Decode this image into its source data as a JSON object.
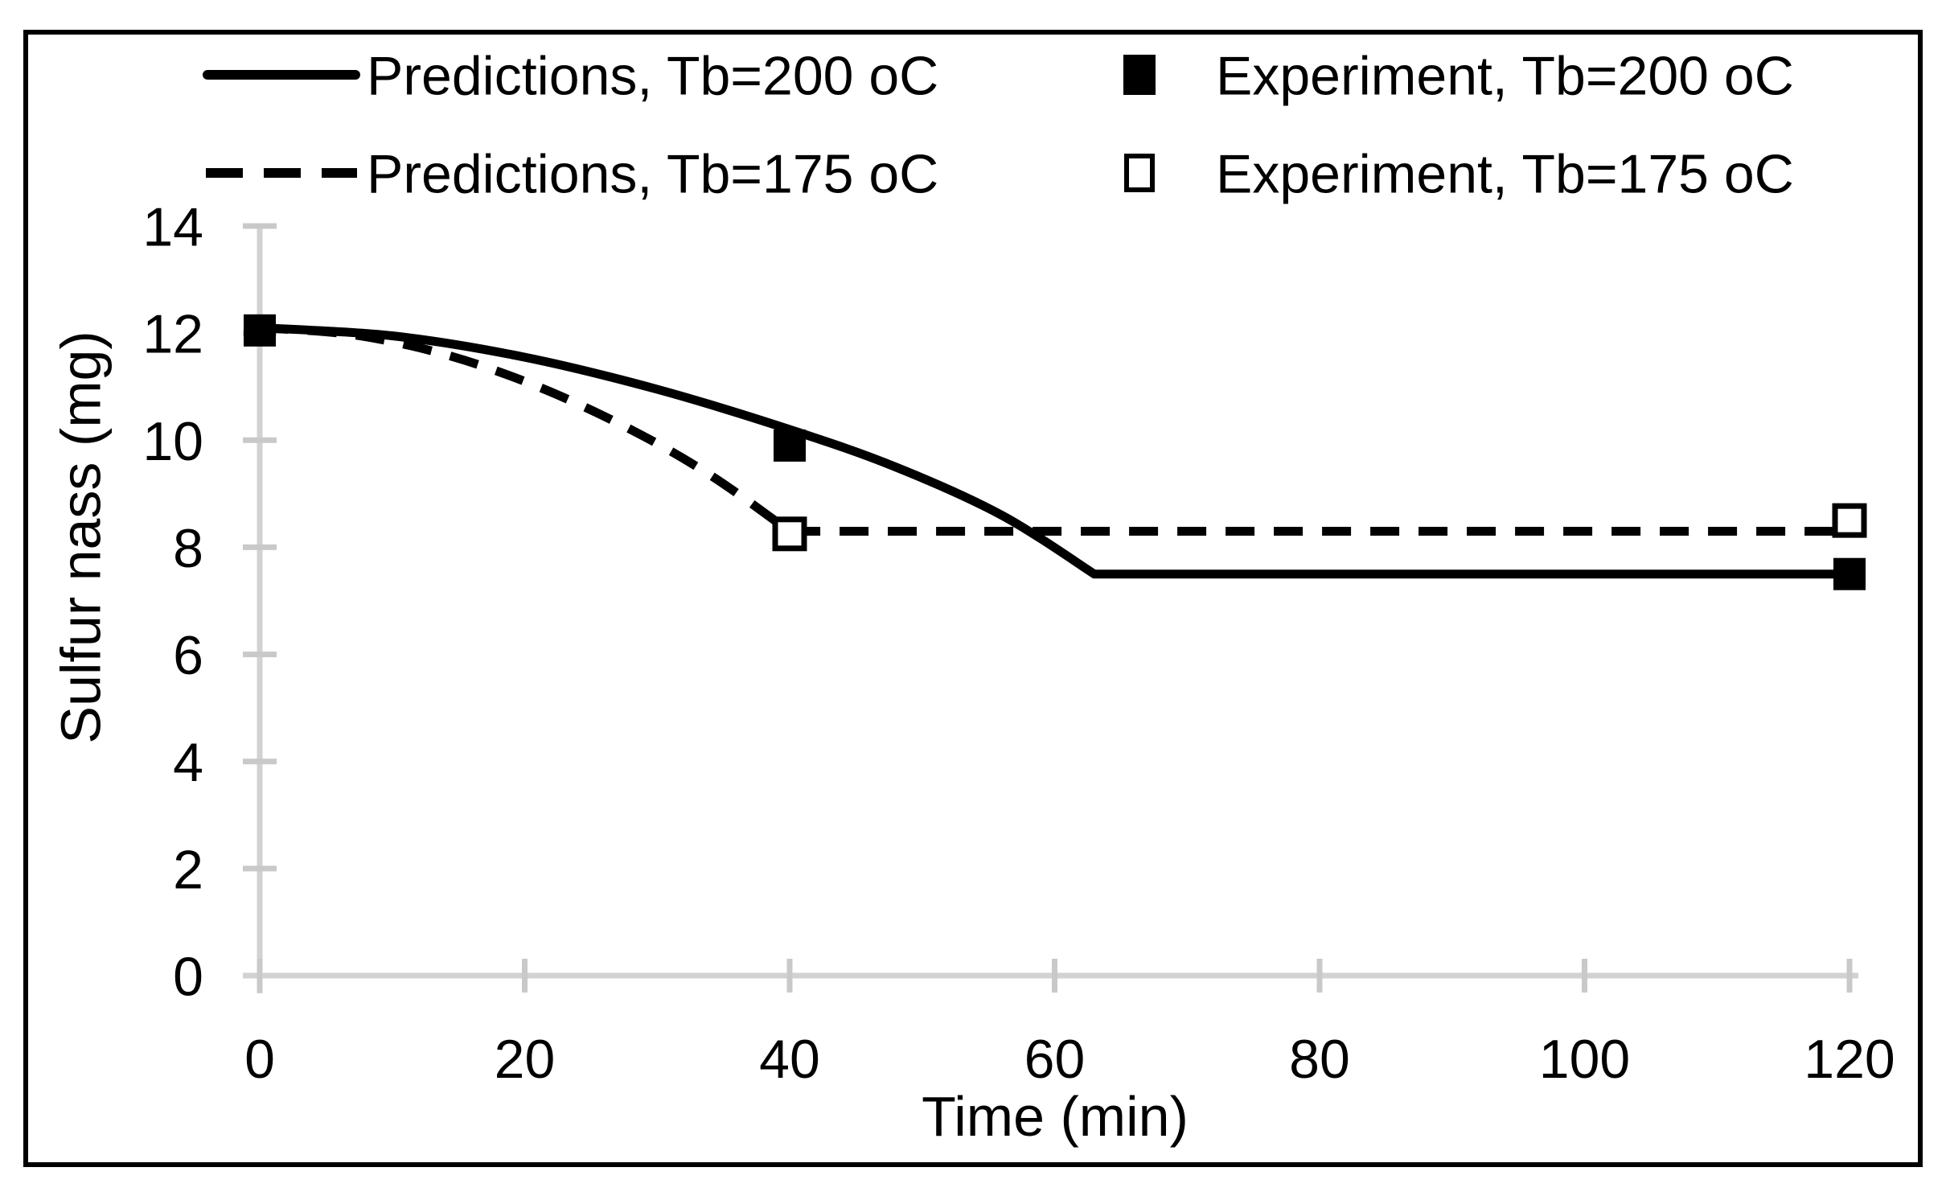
{
  "figure": {
    "background": "#ffffff",
    "frame_color": "#000000",
    "text_color": "#000000",
    "axis_color": "#d2d2d2",
    "tick_color": "#c9c9c9"
  },
  "chart_data": {
    "type": "line",
    "title": "",
    "xlabel": "Time (min)",
    "ylabel": "Sulfur nass (mg)",
    "xlim": [
      0,
      120
    ],
    "ylim": [
      0,
      14
    ],
    "x_ticks": [
      0,
      20,
      40,
      60,
      80,
      100,
      120
    ],
    "y_ticks": [
      0,
      2,
      4,
      6,
      8,
      10,
      12,
      14
    ],
    "grid": false,
    "legend_position": "top",
    "series": [
      {
        "name": "Predictions, Tb=200 oC",
        "kind": "line",
        "line_style": "solid",
        "color": "#000000",
        "points": [
          [
            0,
            12.1
          ],
          [
            10,
            11.95
          ],
          [
            20,
            11.55
          ],
          [
            30,
            10.95
          ],
          [
            40,
            10.2
          ],
          [
            48,
            9.5
          ],
          [
            56,
            8.6
          ],
          [
            63,
            7.5
          ],
          [
            120,
            7.5
          ]
        ],
        "flat_from_x": 63
      },
      {
        "name": "Predictions, Tb=175 oC",
        "kind": "line",
        "line_style": "dashed",
        "color": "#000000",
        "points": [
          [
            0,
            12.1
          ],
          [
            7,
            11.97
          ],
          [
            14,
            11.6
          ],
          [
            21,
            11.0
          ],
          [
            28,
            10.2
          ],
          [
            34,
            9.35
          ],
          [
            40,
            8.3
          ],
          [
            120,
            8.3
          ]
        ],
        "flat_from_x": 40
      },
      {
        "name": "Experiment, Tb=200 oC",
        "kind": "scatter",
        "marker": "filled-square",
        "color": "#000000",
        "points": [
          [
            0,
            12.05
          ],
          [
            40,
            9.9
          ],
          [
            120,
            7.5
          ]
        ]
      },
      {
        "name": "Experiment, Tb=175 oC",
        "kind": "scatter",
        "marker": "open-square",
        "color": "#000000",
        "points": [
          [
            40,
            8.25
          ],
          [
            120,
            8.5
          ]
        ]
      }
    ]
  }
}
